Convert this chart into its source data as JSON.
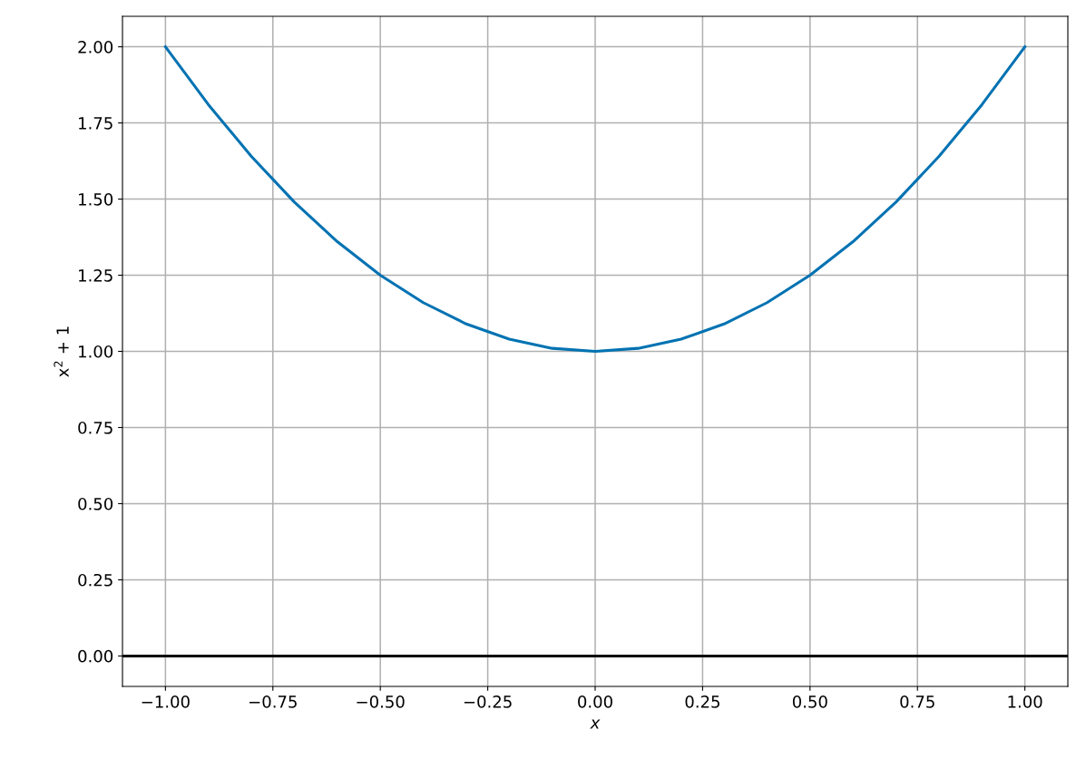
{
  "chart_data": {
    "type": "line",
    "xlabel": "x",
    "ylabel": "x$^{2}$ + 1",
    "series": [
      {
        "color": "#0072b2",
        "x": [
          -1.0,
          -0.9,
          -0.8,
          -0.7,
          -0.6,
          -0.5,
          -0.4,
          -0.3,
          -0.2,
          -0.1,
          0.0,
          0.1,
          0.2,
          0.3,
          0.4,
          0.5,
          0.6,
          0.7,
          0.8,
          0.9,
          1.0
        ],
        "values": [
          2.0,
          1.81,
          1.64,
          1.49,
          1.36,
          1.25,
          1.16,
          1.09,
          1.04,
          1.01,
          1.0,
          1.01,
          1.04,
          1.09,
          1.16,
          1.25,
          1.36,
          1.49,
          1.64,
          1.81,
          2.0
        ]
      }
    ],
    "xlim": [
      -1.1,
      1.1
    ],
    "ylim": [
      -0.1,
      2.1
    ],
    "xticks": [
      {
        "value": -1.0,
        "label": "−1.00"
      },
      {
        "value": -0.75,
        "label": "−0.75"
      },
      {
        "value": -0.5,
        "label": "−0.50"
      },
      {
        "value": -0.25,
        "label": "−0.25"
      },
      {
        "value": 0.0,
        "label": "0.00"
      },
      {
        "value": 0.25,
        "label": "0.25"
      },
      {
        "value": 0.5,
        "label": "0.50"
      },
      {
        "value": 0.75,
        "label": "0.75"
      },
      {
        "value": 1.0,
        "label": "1.00"
      }
    ],
    "yticks": [
      {
        "value": 0.0,
        "label": "0.00"
      },
      {
        "value": 0.25,
        "label": "0.25"
      },
      {
        "value": 0.5,
        "label": "0.50"
      },
      {
        "value": 0.75,
        "label": "0.75"
      },
      {
        "value": 1.0,
        "label": "1.00"
      },
      {
        "value": 1.25,
        "label": "1.25"
      },
      {
        "value": 1.5,
        "label": "1.50"
      },
      {
        "value": 1.75,
        "label": "1.75"
      },
      {
        "value": 2.0,
        "label": "2.00"
      }
    ],
    "ref_lines": [
      {
        "axis": "y",
        "value": 0,
        "color": "#000000",
        "line_style": "solid"
      }
    ],
    "grid": true,
    "marker": "none",
    "line_style": "solid",
    "legend": false
  }
}
